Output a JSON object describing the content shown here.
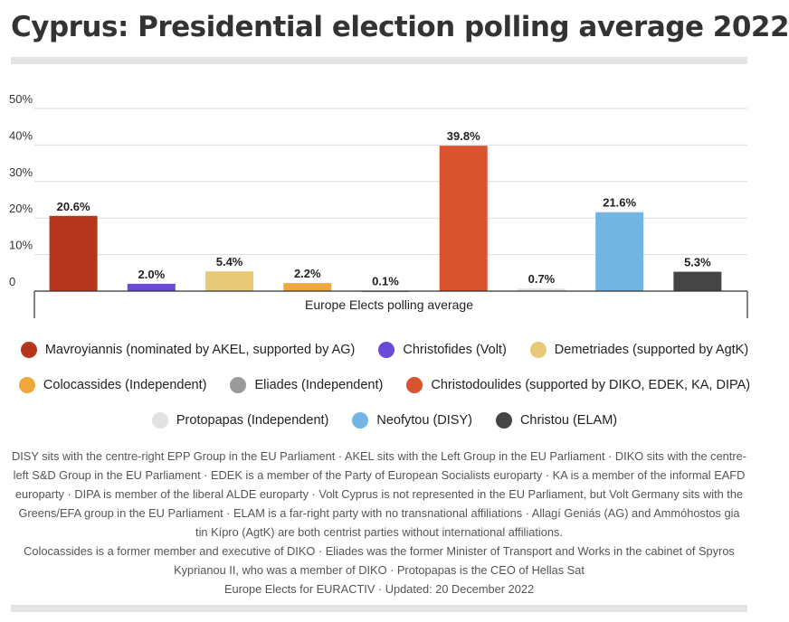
{
  "title": "Cyprus: Presidential election polling average 2022",
  "chart_data": {
    "type": "bar",
    "title": "Cyprus: Presidential election polling average 2022",
    "xlabel": "Europe Elects polling average",
    "ylim": [
      0,
      50
    ],
    "yticks": [
      "0",
      "10%",
      "20%",
      "30%",
      "40%",
      "50%"
    ],
    "grid": true,
    "legend_position": "bottom",
    "series": [
      {
        "name": "Mavroyiannis (nominated by AKEL, supported by AG)",
        "value": 20.6,
        "label": "20.6%",
        "color": "#b5361c"
      },
      {
        "name": "Christofides (Volt)",
        "value": 2.0,
        "label": "2.0%",
        "color": "#6a4bd8"
      },
      {
        "name": "Demetriades (supported by AgtK)",
        "value": 5.4,
        "label": "5.4%",
        "color": "#e8c978"
      },
      {
        "name": "Colocassides (Independent)",
        "value": 2.2,
        "label": "2.2%",
        "color": "#f0a83c"
      },
      {
        "name": "Eliades (Independent)",
        "value": 0.1,
        "label": "0.1%",
        "color": "#9a9a9a"
      },
      {
        "name": "Christodoulides (supported by DIKO, EDEK, KA, DIPA)",
        "value": 39.8,
        "label": "39.8%",
        "color": "#d9532e"
      },
      {
        "name": "Protopapas (Independent)",
        "value": 0.7,
        "label": "0.7%",
        "color": "#e2e2e2"
      },
      {
        "name": "Neofytou (DISY)",
        "value": 21.6,
        "label": "21.6%",
        "color": "#72b5e2"
      },
      {
        "name": "Christou (ELAM)",
        "value": 5.3,
        "label": "5.3%",
        "color": "#454545"
      }
    ]
  },
  "notes": [
    "DISY sits with the centre-right EPP Group in the EU Parliament · AKEL sits with the Left Group in the EU Parliament · DIKO sits with the centre-left S&D Group in the EU Parliament · EDEK is a member of the Party of European Socialists europarty · KA is a member of the informal EAFD europarty · DIPA is member of the liberal ALDE europarty · Volt Cyprus is not represented in the EU Parliament, but Volt Germany sits with the Greens/EFA group in the EU Parliament · ELAM is a far-right party with no transnational affiliations · Allagí Geniás (AG) and Ammóhostos gia tin Kípro (AgtK) are both centrist parties without international affiliations.",
    "Colocassides is a former member and executive of DIKO · Eliades was the former Minister of Transport and Works in the cabinet of Spyros Kyprianou II, who was a member of DIKO · Protopapas is the CEO of Hellas Sat",
    "Europe Elects for EURACTIV · Updated: 20 December 2022"
  ]
}
